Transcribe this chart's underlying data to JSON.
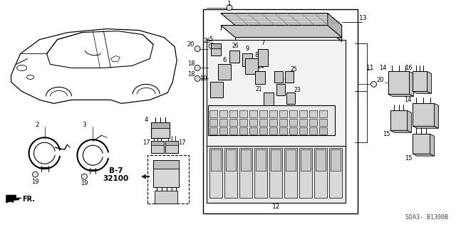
{
  "background_color": "#ffffff",
  "diagram_id": "SDA3- B1300B",
  "ref_code": "B-7\n32100",
  "arrow_label": "FR.",
  "fig_width": 6.4,
  "fig_height": 3.19,
  "dpi": 100,
  "car_color": "#000000",
  "line_color": "#000000",
  "part_label_size": 6.0,
  "bolt_color": "#333333",
  "fuse_fill": "#cccccc",
  "relay_fill": "#bbbbbb",
  "cover_fill": "#c8c8c8",
  "cover_stripe": "#aaaaaa"
}
